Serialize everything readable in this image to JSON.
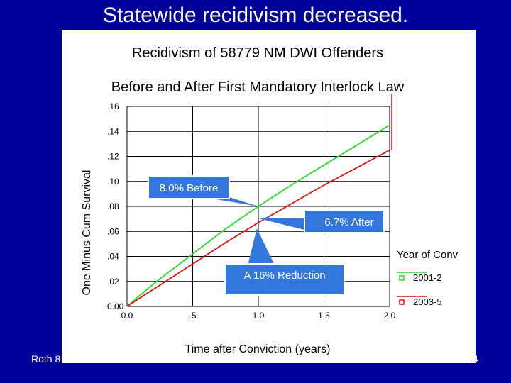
{
  "slide": {
    "title": "Statewide recidivism decreased.",
    "footer_left": "Roth 8",
    "footer_right": "4"
  },
  "chart_data": {
    "type": "line",
    "title": "Recidivism of 58779 NM DWI Offenders",
    "subtitle": "Before and After First Mandatory Interlock Law",
    "xlabel": "Time after Conviction (years)",
    "ylabel": "One Minus Cum Survival",
    "xlim": [
      0.0,
      2.0
    ],
    "ylim": [
      0.0,
      0.16
    ],
    "x_ticks": [
      {
        "value": 0.0,
        "label": "0.0"
      },
      {
        "value": 0.5,
        "label": ".5"
      },
      {
        "value": 1.0,
        "label": "1.0"
      },
      {
        "value": 1.5,
        "label": "1.5"
      },
      {
        "value": 2.0,
        "label": "2.0"
      }
    ],
    "y_ticks": [
      {
        "value": 0.0,
        "label": "0.00"
      },
      {
        "value": 0.02,
        "label": ".02"
      },
      {
        "value": 0.04,
        "label": ".04"
      },
      {
        "value": 0.06,
        "label": ".06"
      },
      {
        "value": 0.08,
        "label": ".08"
      },
      {
        "value": 0.1,
        "label": ".10"
      },
      {
        "value": 0.12,
        "label": ".12"
      },
      {
        "value": 0.14,
        "label": ".14"
      },
      {
        "value": 0.16,
        "label": ".16"
      }
    ],
    "grid": true,
    "legend": {
      "title": "Year of Conv",
      "position": "right"
    },
    "series": [
      {
        "name": "2001-2",
        "color": "#22dd22",
        "x": [
          0,
          0.1,
          0.25,
          0.5,
          0.75,
          1.0,
          1.25,
          1.5,
          1.75,
          2.0
        ],
        "y": [
          0,
          0.009,
          0.022,
          0.042,
          0.062,
          0.08,
          0.097,
          0.113,
          0.129,
          0.145
        ]
      },
      {
        "name": "2003-5",
        "color": "#dd1111",
        "x": [
          0,
          0.1,
          0.25,
          0.5,
          0.75,
          1.0,
          1.25,
          1.5,
          1.75,
          2.0
        ],
        "y": [
          0,
          0.007,
          0.017,
          0.034,
          0.051,
          0.067,
          0.082,
          0.097,
          0.111,
          0.125
        ]
      }
    ],
    "annotations": [
      {
        "text": "8.0% Before"
      },
      {
        "text": "6.7% After"
      },
      {
        "text": "A 16% Reduction"
      }
    ],
    "callout_color": "#3377dd"
  }
}
